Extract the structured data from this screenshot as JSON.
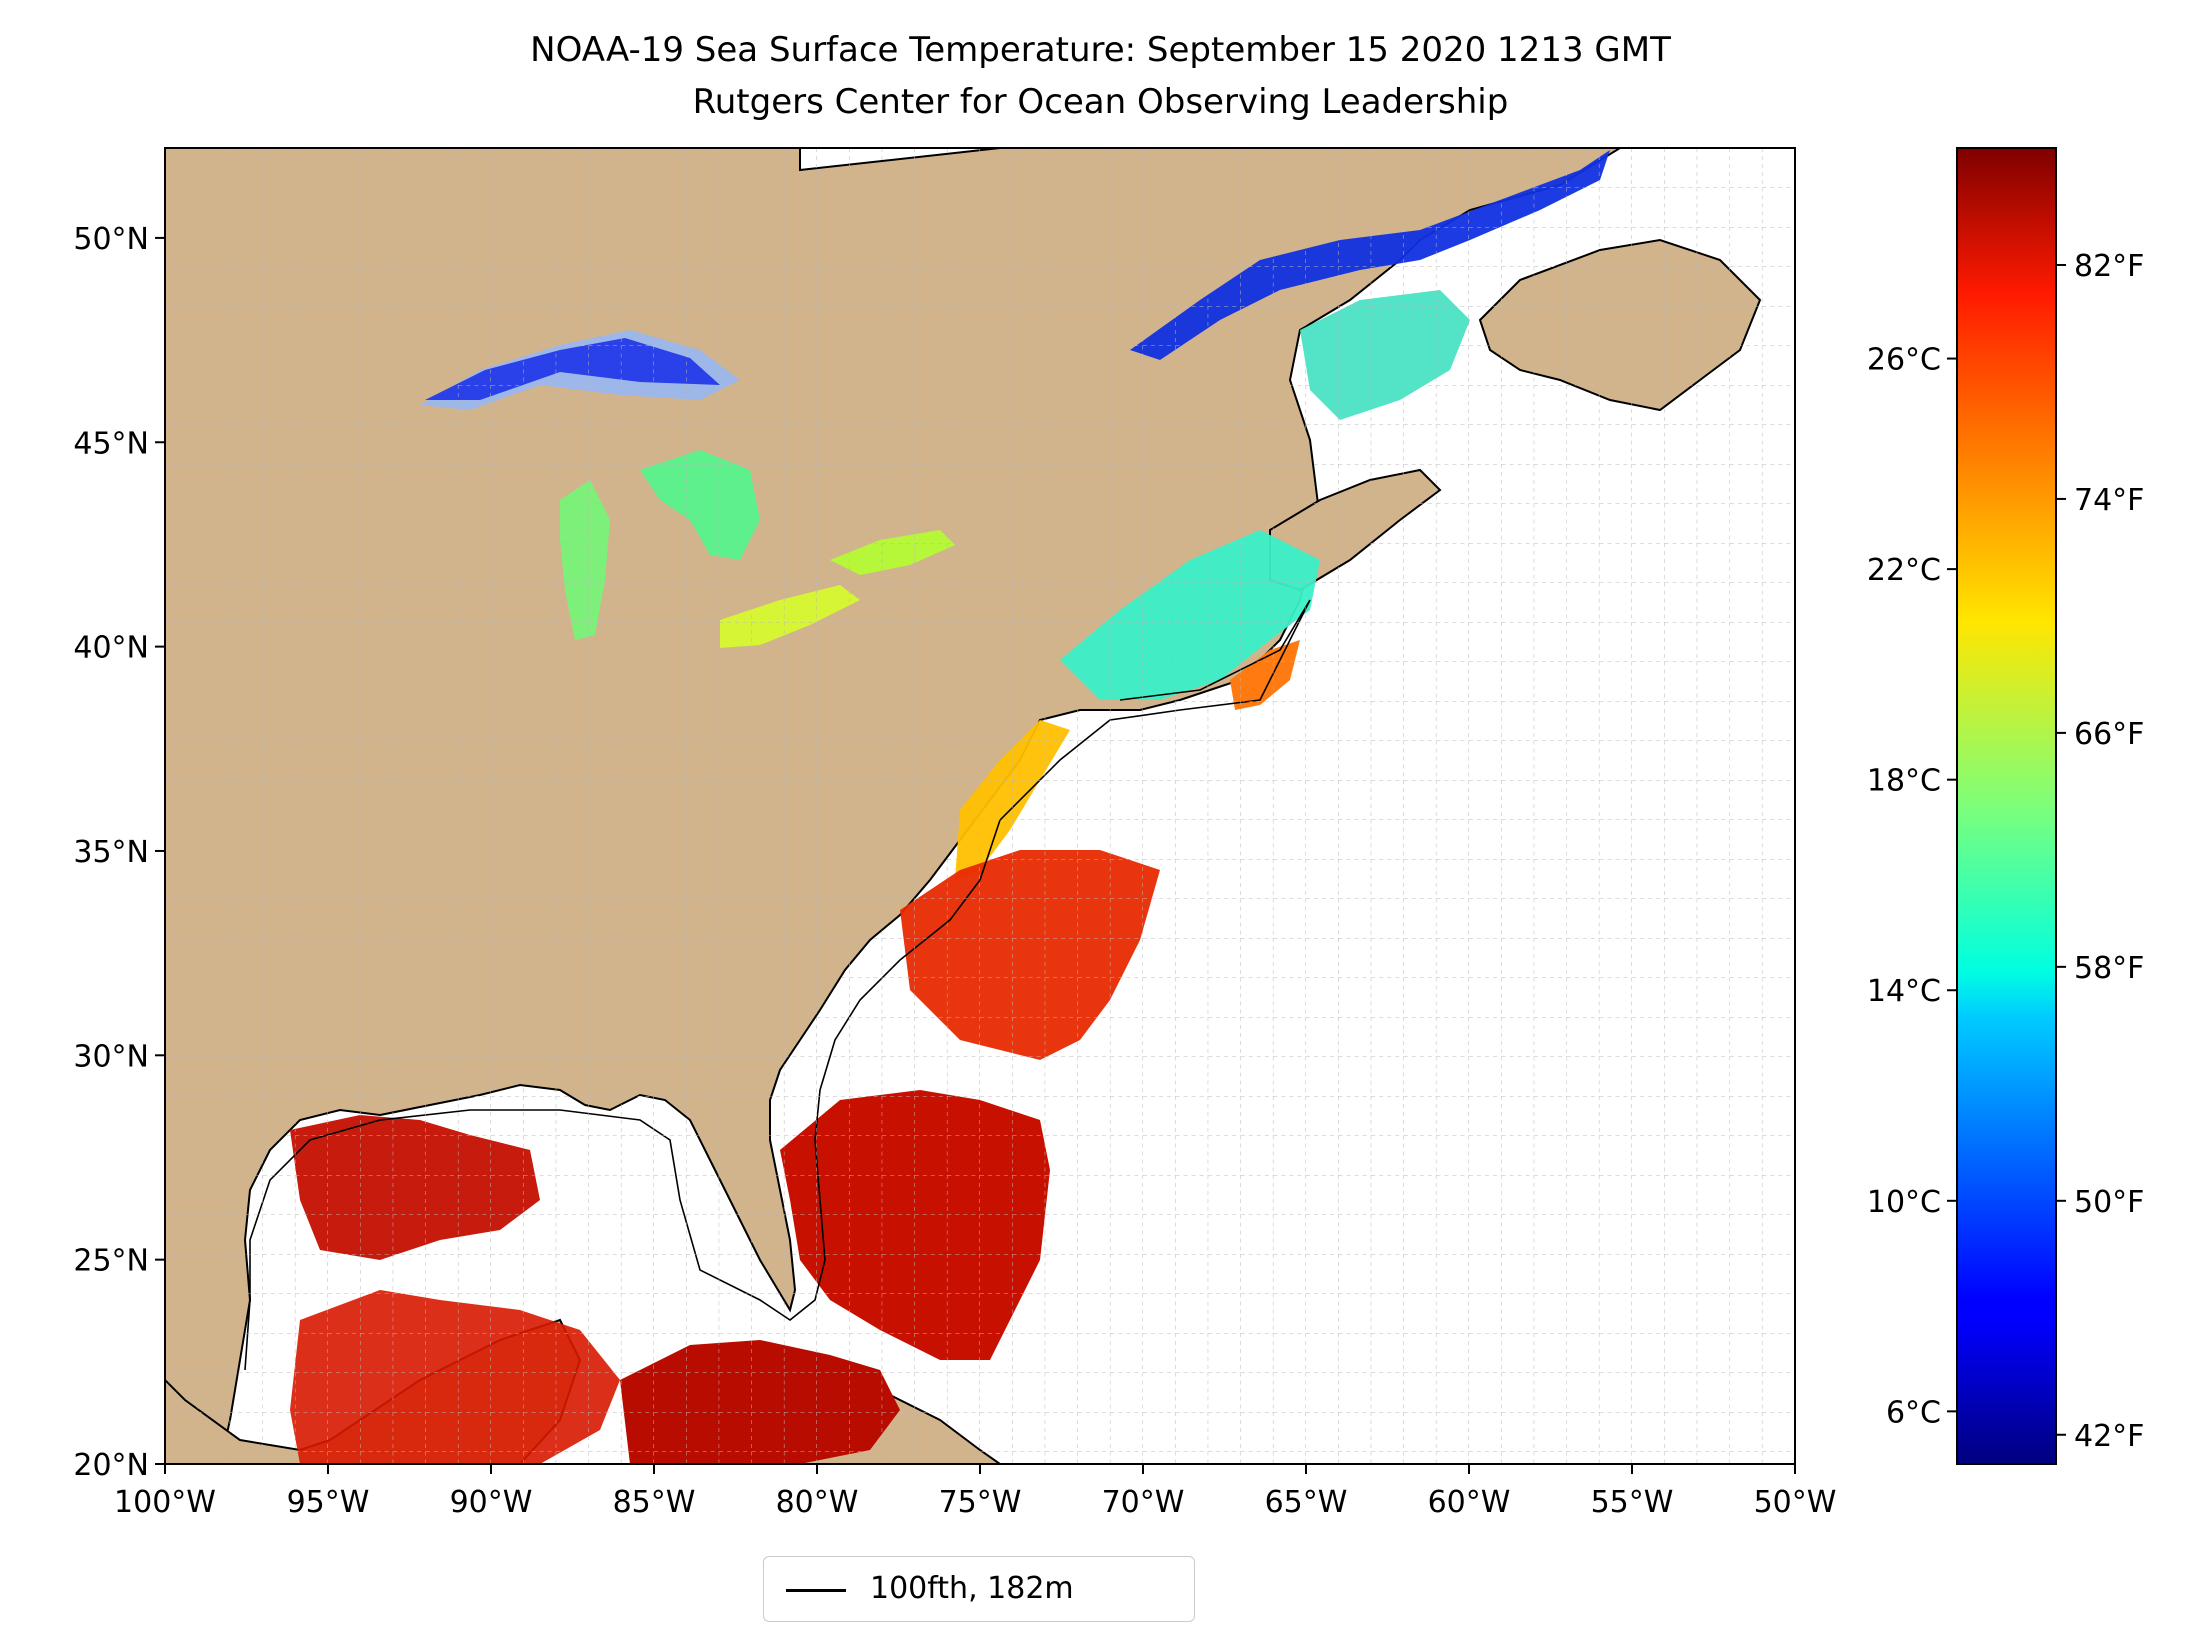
{
  "title": "NOAA-19 Sea Surface Temperature: September 15 2020 1213 GMT",
  "subtitle": "Rutgers Center for Ocean Observing Leadership",
  "map": {
    "lat_range": [
      20,
      52.2
    ],
    "lon_range": [
      -100,
      -50
    ],
    "lat_ticks": [
      "50°N",
      "45°N",
      "40°N",
      "35°N",
      "30°N",
      "25°N",
      "20°N"
    ],
    "lon_ticks": [
      "100°W",
      "95°W",
      "90°W",
      "85°W",
      "80°W",
      "75°W",
      "70°W",
      "65°W",
      "60°W",
      "55°W",
      "50°W"
    ],
    "land_color": "#d2b48c",
    "ocean_no_data_color": "#ffffff",
    "lake_color": "#9db7e8",
    "gridlines": true,
    "gridline_style": "dashed",
    "colormap": "jet",
    "highlights": [
      {
        "region": "Gulf of St. Lawrence",
        "temp_f": 46
      },
      {
        "region": "Lake Superior",
        "temp_f": 50
      },
      {
        "region": "Lake Michigan",
        "temp_f": 64
      },
      {
        "region": "Lake Huron",
        "temp_f": 62
      },
      {
        "region": "Lake Erie",
        "temp_f": 70
      },
      {
        "region": "Lake Ontario",
        "temp_f": 68
      },
      {
        "region": "Gulf of Maine / Scotian Shelf",
        "temp_f": 60
      },
      {
        "region": "Mid-Atlantic Bight",
        "temp_f": 72
      },
      {
        "region": "Gulf Stream / South Atlantic Bight",
        "temp_f": 82
      },
      {
        "region": "Gulf of Mexico",
        "temp_f": 84
      },
      {
        "region": "Caribbean / Bahamas",
        "temp_f": 85
      }
    ]
  },
  "legend": {
    "label": "100fth, 182m",
    "line_color": "#000000"
  },
  "colorbar": {
    "celsius_ticks": [
      "26°C",
      "22°C",
      "18°C",
      "14°C",
      "10°C",
      "6°C"
    ],
    "fahrenheit_ticks": [
      "82°F",
      "74°F",
      "66°F",
      "58°F",
      "50°F",
      "42°F"
    ],
    "celsius_values": [
      26,
      22,
      18,
      14,
      10,
      6
    ],
    "fahrenheit_values": [
      82,
      74,
      66,
      58,
      50,
      42
    ],
    "range_c": [
      5.0,
      30.0
    ]
  }
}
